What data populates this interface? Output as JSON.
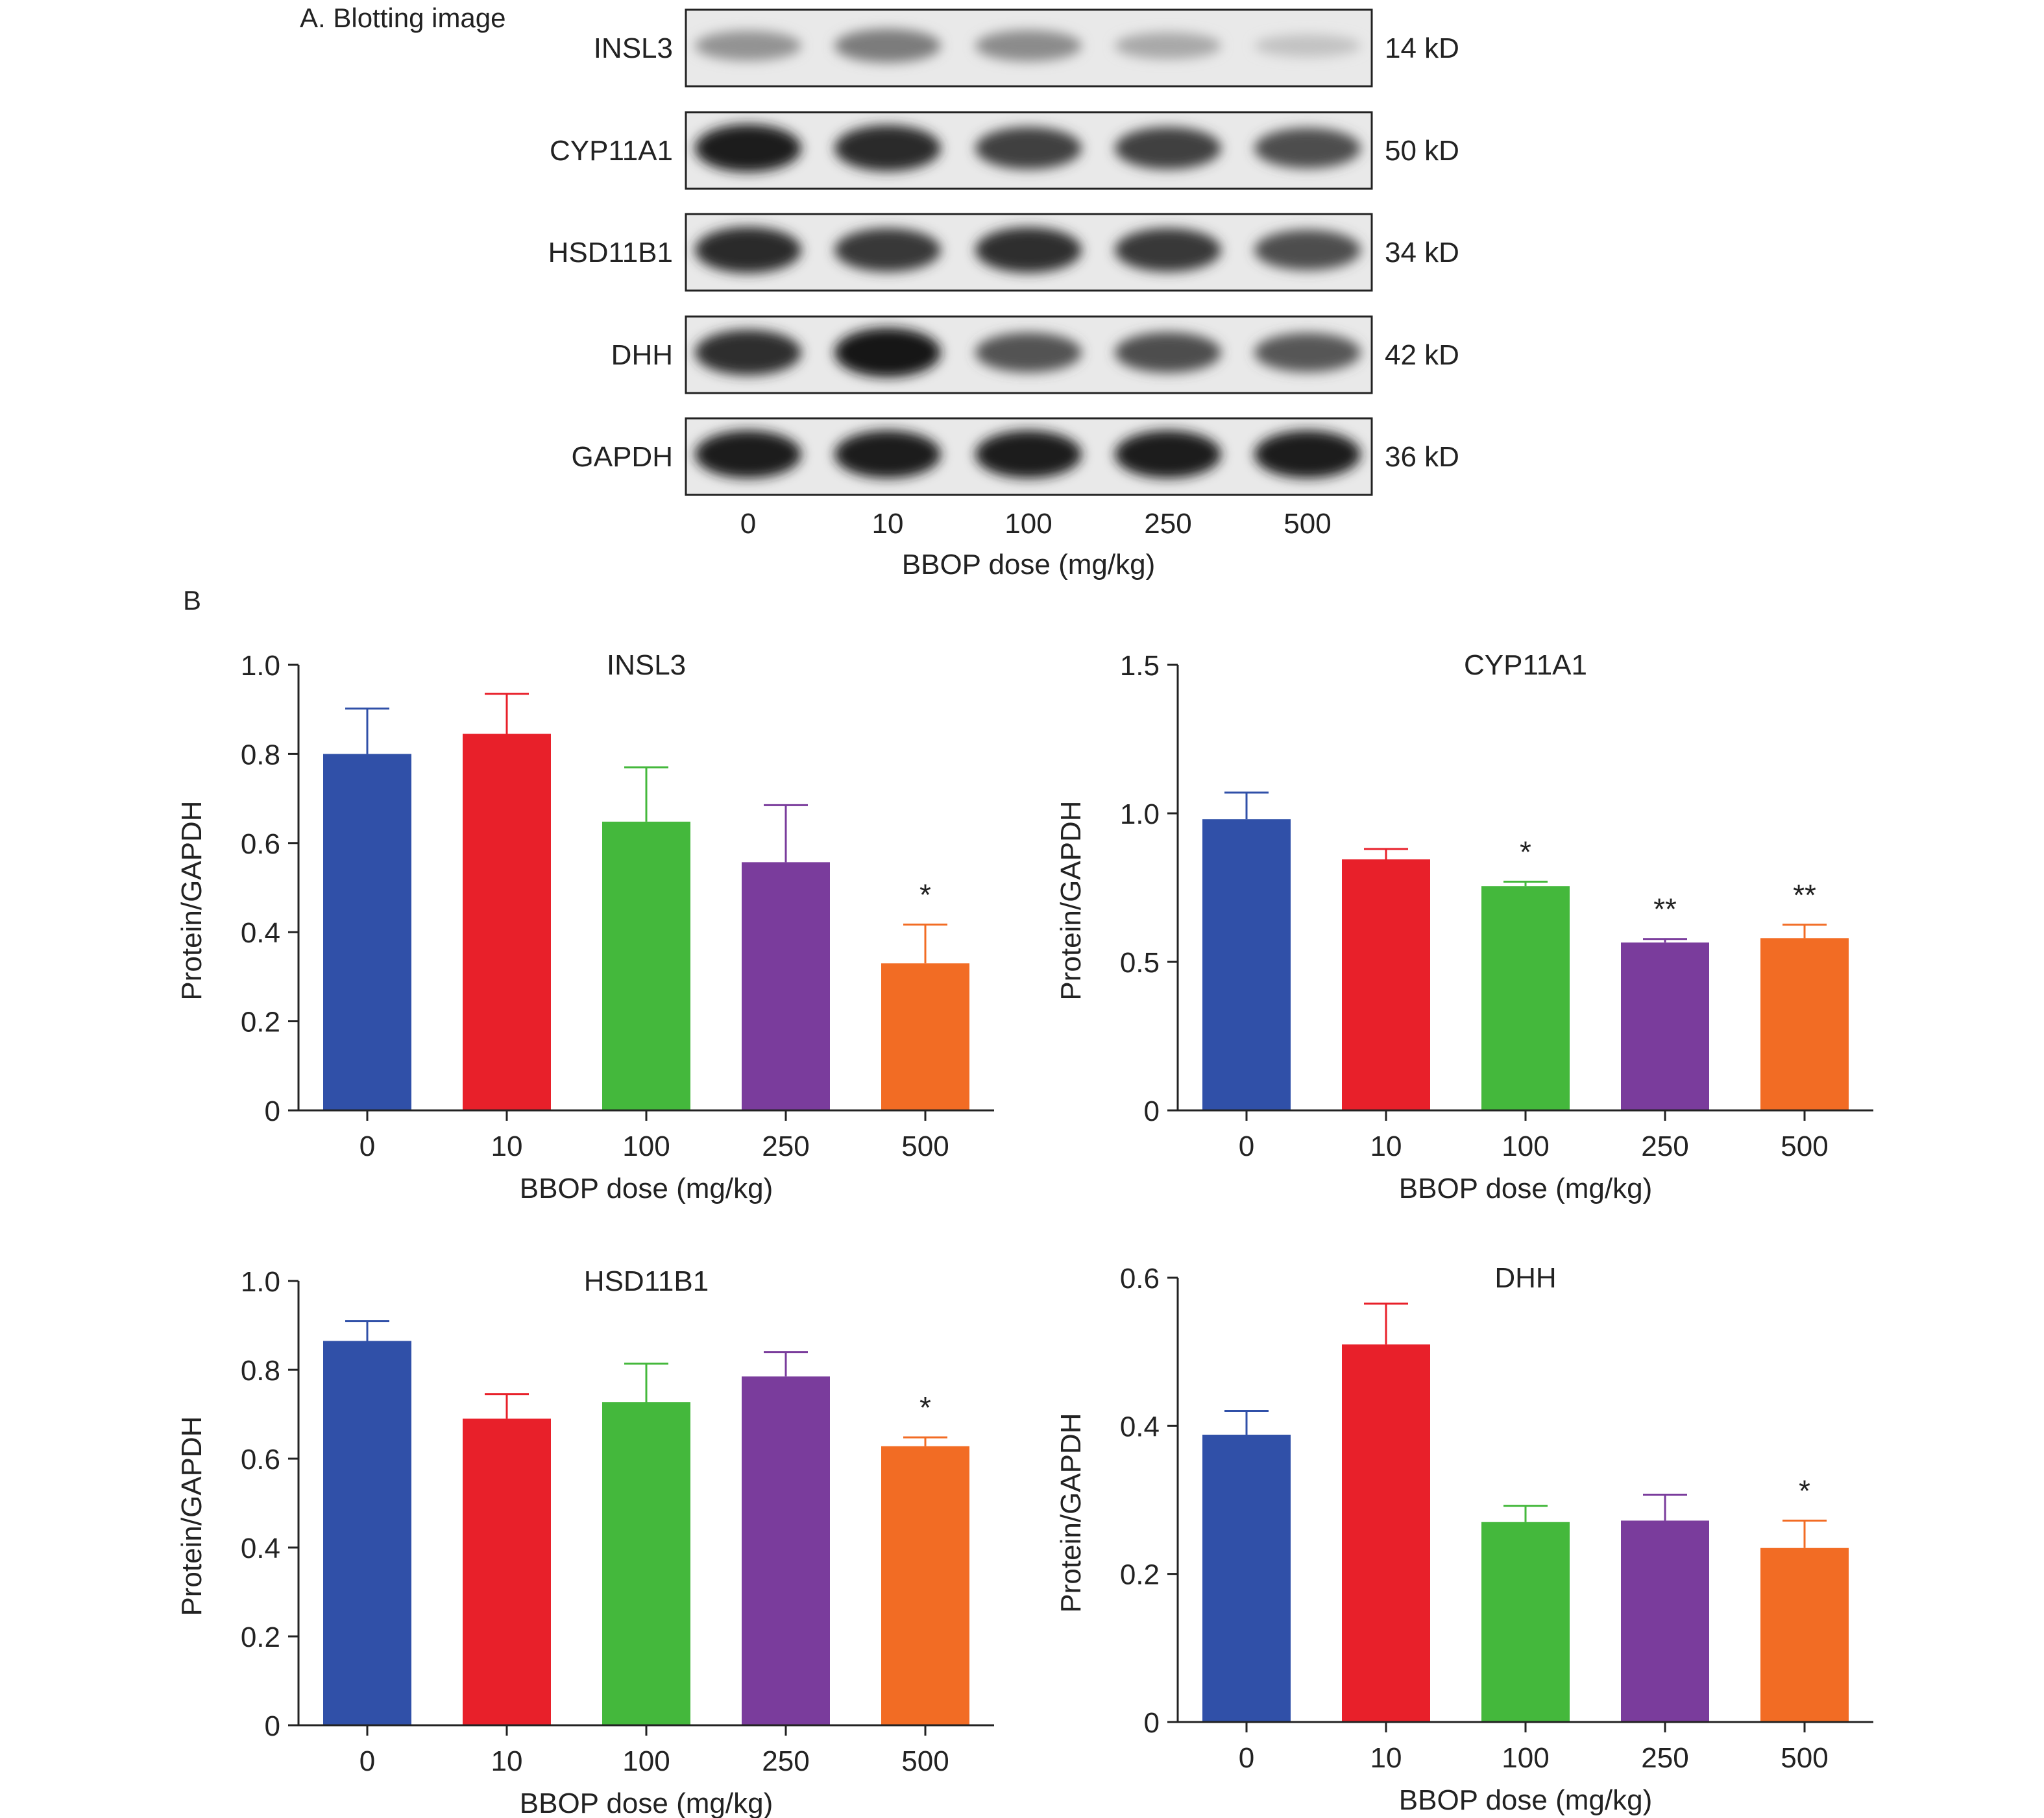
{
  "panel_a": {
    "label": "A. Blotting image",
    "lanes": [
      "0",
      "10",
      "100",
      "250",
      "500"
    ],
    "xlabel": "BBOP dose (mg/kg)",
    "blots": [
      {
        "protein": "INSL3",
        "size": "14 kD",
        "intensities": [
          0.38,
          0.5,
          0.42,
          0.28,
          0.15
        ]
      },
      {
        "protein": "CYP11A1",
        "size": "50 kD",
        "intensities": [
          0.95,
          0.9,
          0.78,
          0.78,
          0.72
        ]
      },
      {
        "protein": "HSD11B1",
        "size": "34 kD",
        "intensities": [
          0.9,
          0.82,
          0.88,
          0.82,
          0.72
        ]
      },
      {
        "protein": "DHH",
        "size": "42 kD",
        "intensities": [
          0.88,
          1.0,
          0.7,
          0.72,
          0.68
        ]
      },
      {
        "protein": "GAPDH",
        "size": "36 kD",
        "intensities": [
          0.95,
          0.95,
          0.95,
          0.95,
          0.95
        ]
      }
    ]
  },
  "panel_b": {
    "label": "B"
  },
  "colors": [
    "#3050a8",
    "#e8202a",
    "#44b83c",
    "#7a3c9c",
    "#f26c24"
  ],
  "chart_data": [
    {
      "type": "bar",
      "title": "INSL3",
      "xlabel": "BBOP dose (mg/kg)",
      "ylabel": "Protein/GAPDH",
      "categories": [
        "0",
        "10",
        "100",
        "250",
        "500"
      ],
      "values": [
        0.8,
        0.845,
        0.648,
        0.557,
        0.33
      ],
      "errors": [
        0.102,
        0.09,
        0.122,
        0.128,
        0.087
      ],
      "significance": [
        "",
        "",
        "",
        "",
        "*"
      ],
      "ylim": [
        0,
        1.0
      ],
      "yticks": [
        "0",
        "0.2",
        "0.4",
        "0.6",
        "0.8",
        "1.0"
      ]
    },
    {
      "type": "bar",
      "title": "CYP11A1",
      "xlabel": "BBOP dose (mg/kg)",
      "ylabel": "Protein/GAPDH",
      "categories": [
        "0",
        "10",
        "100",
        "250",
        "500"
      ],
      "values": [
        0.98,
        0.845,
        0.755,
        0.565,
        0.58
      ],
      "errors": [
        0.09,
        0.035,
        0.015,
        0.012,
        0.045
      ],
      "significance": [
        "",
        "",
        "*",
        "**",
        "**"
      ],
      "ylim": [
        0,
        1.5
      ],
      "yticks": [
        "0",
        "0.5",
        "1.0",
        "1.5"
      ]
    },
    {
      "type": "bar",
      "title": "HSD11B1",
      "xlabel": "BBOP dose (mg/kg)",
      "ylabel": "Protein/GAPDH",
      "categories": [
        "0",
        "10",
        "100",
        "250",
        "500"
      ],
      "values": [
        0.865,
        0.69,
        0.727,
        0.785,
        0.628
      ],
      "errors": [
        0.045,
        0.055,
        0.087,
        0.055,
        0.02
      ],
      "significance": [
        "",
        "",
        "",
        "",
        "*"
      ],
      "ylim": [
        0,
        1.0
      ],
      "yticks": [
        "0",
        "0.2",
        "0.4",
        "0.6",
        "0.8",
        "1.0"
      ]
    },
    {
      "type": "bar",
      "title": "DHH",
      "xlabel": "BBOP dose (mg/kg)",
      "ylabel": "Protein/GAPDH",
      "categories": [
        "0",
        "10",
        "100",
        "250",
        "500"
      ],
      "values": [
        0.388,
        0.51,
        0.27,
        0.272,
        0.235
      ],
      "errors": [
        0.032,
        0.055,
        0.022,
        0.035,
        0.037
      ],
      "significance": [
        "",
        "",
        "",
        "",
        "*"
      ],
      "ylim": [
        0,
        0.6
      ],
      "yticks": [
        "0",
        "0.2",
        "0.4",
        "0.6"
      ]
    }
  ]
}
